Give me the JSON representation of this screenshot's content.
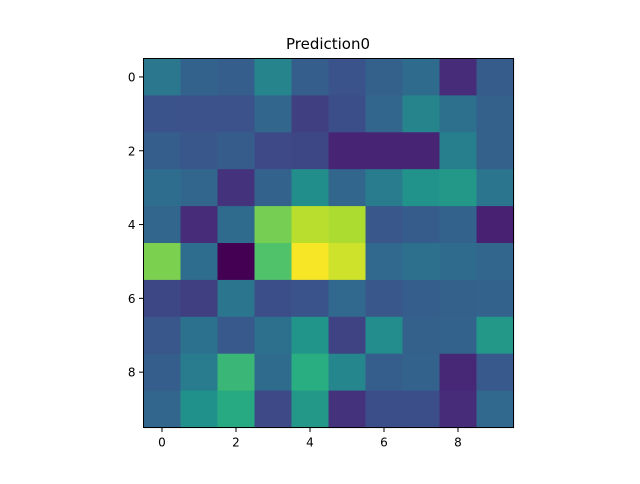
{
  "chart_data": {
    "type": "heatmap",
    "title": "Prediction0",
    "xlabel": "",
    "ylabel": "",
    "colormap": "viridis",
    "value_range": [
      0,
      1
    ],
    "x_ticks": [
      "0",
      "2",
      "4",
      "6",
      "8"
    ],
    "y_ticks": [
      "0",
      "2",
      "4",
      "6",
      "8"
    ],
    "rows": 10,
    "cols": 10,
    "values": [
      [
        0.4,
        0.32,
        0.3,
        0.45,
        0.3,
        0.26,
        0.31,
        0.35,
        0.15,
        0.29
      ],
      [
        0.26,
        0.25,
        0.25,
        0.33,
        0.2,
        0.24,
        0.33,
        0.45,
        0.37,
        0.31
      ],
      [
        0.3,
        0.27,
        0.29,
        0.23,
        0.22,
        0.13,
        0.13,
        0.13,
        0.43,
        0.31
      ],
      [
        0.36,
        0.33,
        0.17,
        0.32,
        0.49,
        0.33,
        0.42,
        0.51,
        0.53,
        0.39
      ],
      [
        0.33,
        0.15,
        0.35,
        0.79,
        0.9,
        0.88,
        0.27,
        0.29,
        0.32,
        0.12
      ],
      [
        0.8,
        0.36,
        0.0,
        0.72,
        0.99,
        0.93,
        0.34,
        0.37,
        0.35,
        0.33
      ],
      [
        0.22,
        0.2,
        0.39,
        0.24,
        0.26,
        0.34,
        0.27,
        0.3,
        0.31,
        0.32
      ],
      [
        0.27,
        0.38,
        0.28,
        0.37,
        0.52,
        0.21,
        0.48,
        0.31,
        0.32,
        0.53
      ],
      [
        0.3,
        0.42,
        0.67,
        0.35,
        0.63,
        0.46,
        0.3,
        0.32,
        0.14,
        0.28
      ],
      [
        0.33,
        0.5,
        0.61,
        0.23,
        0.53,
        0.17,
        0.24,
        0.24,
        0.15,
        0.34
      ]
    ]
  }
}
